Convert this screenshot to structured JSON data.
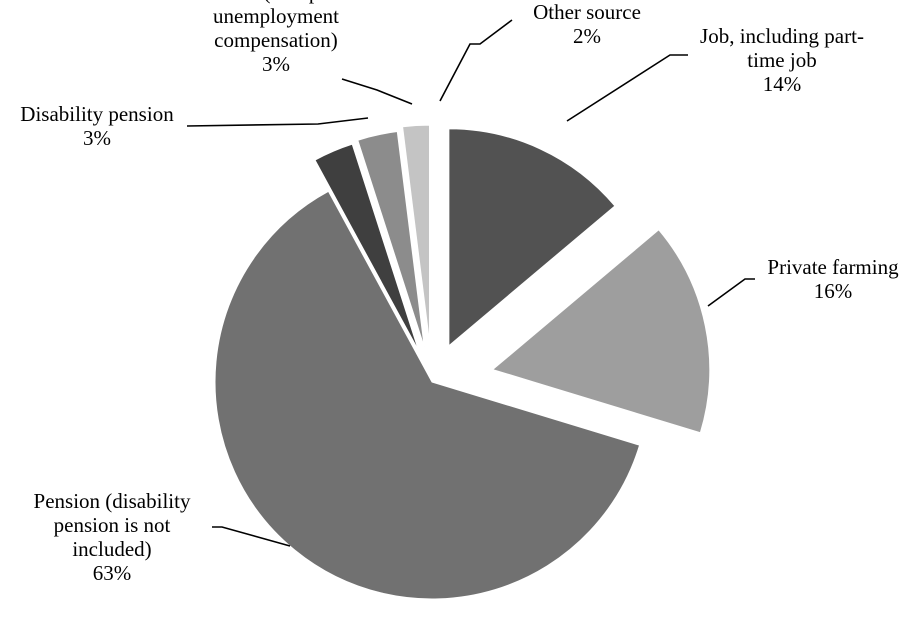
{
  "chart_data": {
    "type": "pie",
    "title": "",
    "slices": [
      {
        "label": "Job, including part-time job",
        "value": 14,
        "pct_label": "14%",
        "color": "#525252"
      },
      {
        "label": "Private farming",
        "value": 16,
        "pct_label": "16%",
        "color": "#9e9e9e"
      },
      {
        "label": "Pension (disability pension is not included)",
        "value": 63,
        "pct_label": "63%",
        "color": "#717171"
      },
      {
        "label": "Disability pension",
        "value": 3,
        "pct_label": "3%",
        "color": "#3f3f3f"
      },
      {
        "label": "Aid (except unemployment compensation)",
        "value": 3,
        "pct_label": "3%",
        "color": "#8c8c8c"
      },
      {
        "label": "Other source",
        "value": 2,
        "pct_label": "2%",
        "color": "#c4c4c4"
      }
    ],
    "label_lines": [
      [
        "Job, including part-",
        "time job",
        "14%"
      ],
      [
        "Private farming",
        "16%"
      ],
      [
        "Pension (disability",
        "pension is not",
        "included)",
        "63%"
      ],
      [
        "Disability pension",
        "3%"
      ],
      [
        "Aid (except",
        "unemployment",
        "compensation)",
        "3%"
      ],
      [
        "Other source",
        "2%"
      ]
    ],
    "legend": "none",
    "exploded": true
  }
}
